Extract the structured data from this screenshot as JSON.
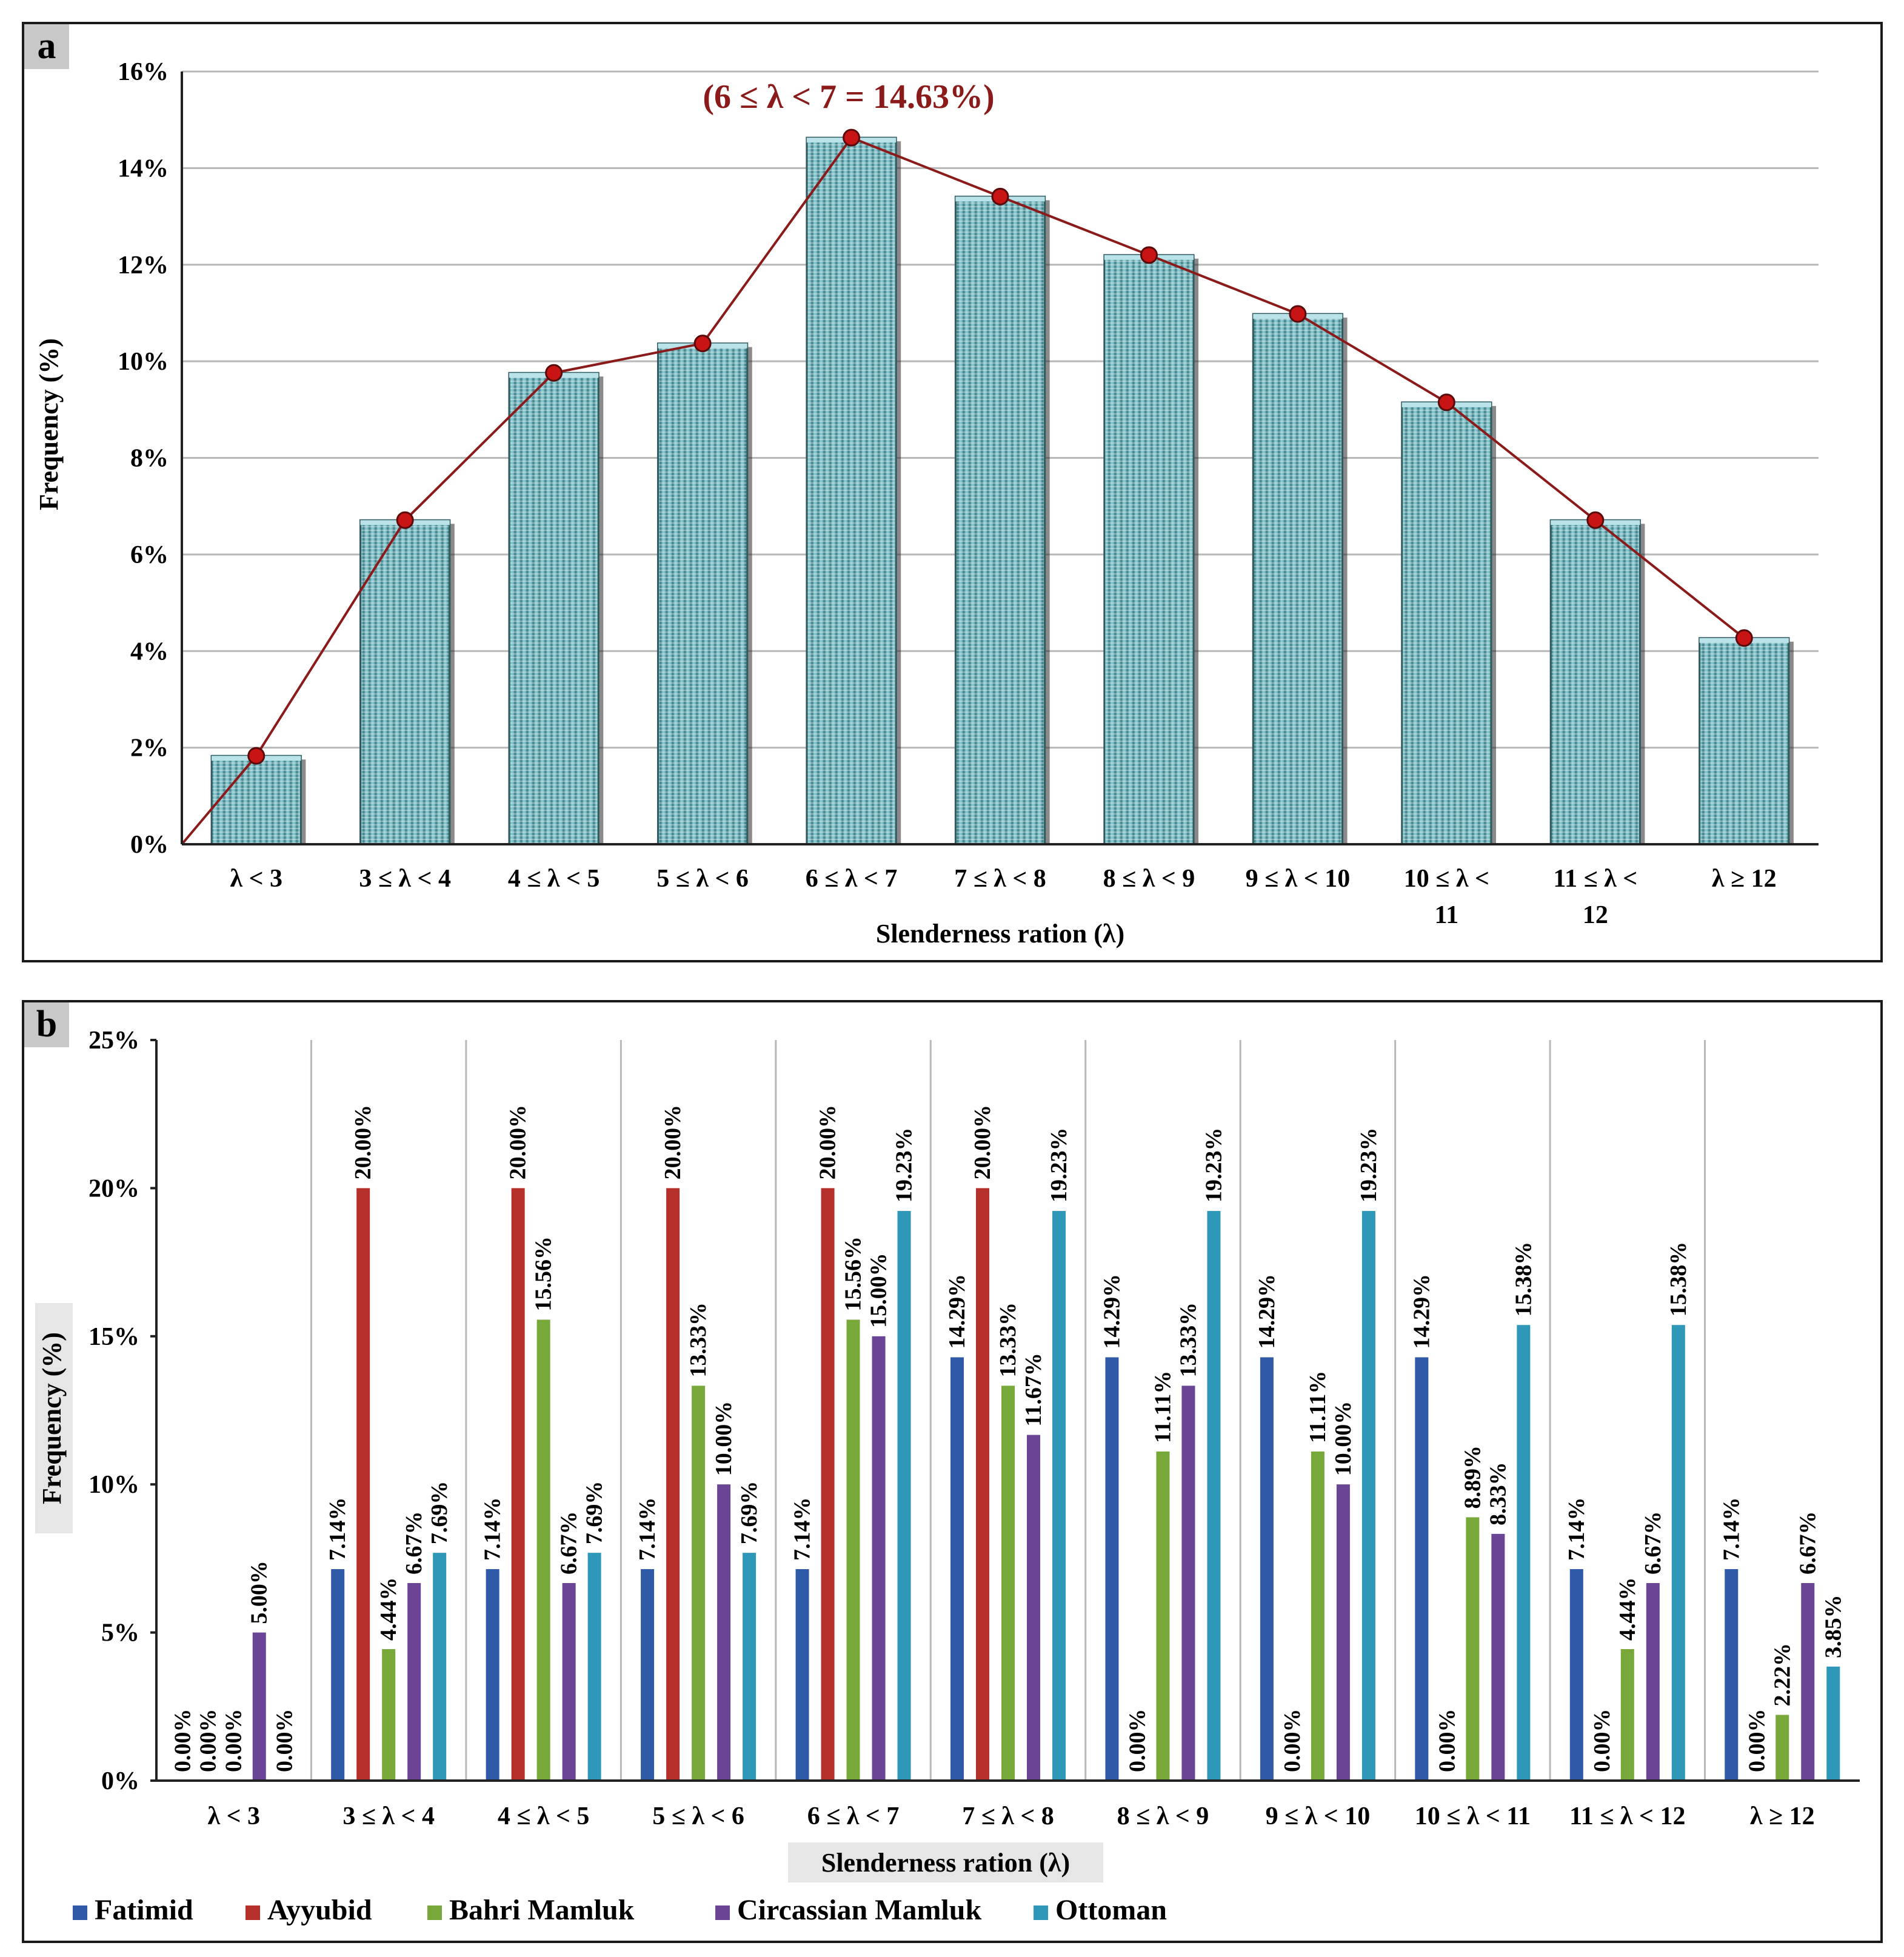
{
  "chart_data": [
    {
      "panel_label": "a",
      "type": "bar",
      "categories": [
        "λ < 3",
        "3 ≤ λ < 4",
        "4 ≤ λ < 5",
        "5 ≤ λ < 6",
        "6 ≤ λ < 7",
        "7 ≤ λ < 8",
        "8 ≤ λ < 9",
        "9 ≤ λ < 10",
        "10 ≤ λ < 11",
        "11 ≤ λ < 12",
        "λ ≥ 12"
      ],
      "values": [
        1.83,
        6.71,
        9.76,
        10.37,
        14.63,
        13.41,
        12.2,
        10.98,
        9.15,
        6.71,
        4.27
      ],
      "overlay_line": {
        "type": "line",
        "values": [
          1.83,
          6.71,
          9.76,
          10.37,
          14.63,
          13.41,
          12.2,
          10.98,
          9.15,
          6.71,
          4.27
        ],
        "color": "#8b1a1a"
      },
      "annotation": "(6 ≤ λ < 7 = 14.63%)",
      "xlabel": "Slenderness ration (λ)",
      "ylabel": "Frequency (%)",
      "ylim": [
        0,
        16
      ],
      "yticks": [
        "0%",
        "2%",
        "4%",
        "6%",
        "8%",
        "10%",
        "12%",
        "14%",
        "16%"
      ],
      "grid": true,
      "bar_color": "#6fb3bd",
      "annotation_color": "#8b1a1a"
    },
    {
      "panel_label": "b",
      "type": "bar",
      "categories": [
        "λ < 3",
        "3 ≤ λ < 4",
        "4 ≤ λ < 5",
        "5 ≤ λ < 6",
        "6 ≤ λ < 7",
        "7 ≤ λ < 8",
        "8 ≤ λ < 9",
        "9 ≤ λ < 10",
        "10 ≤ λ < 11",
        "11 ≤ λ < 12",
        "λ ≥ 12"
      ],
      "series": [
        {
          "name": "Fatimid",
          "color": "#2e5aa8",
          "values": [
            0,
            7.14,
            7.14,
            7.14,
            7.14,
            14.29,
            14.29,
            14.29,
            14.29,
            7.14,
            7.14
          ]
        },
        {
          "name": "Ayyubid",
          "color": "#b5302a",
          "values": [
            null,
            20.0,
            20.0,
            20.0,
            20.0,
            20.0,
            null,
            null,
            null,
            null,
            null
          ]
        },
        {
          "name": "Bahri Mamluk",
          "color": "#79a83a",
          "values": [
            0,
            4.44,
            15.56,
            13.33,
            15.56,
            13.33,
            11.11,
            11.11,
            8.89,
            4.44,
            2.22
          ]
        },
        {
          "name": "Circassian Mamluk",
          "color": "#6a4495",
          "values": [
            5.0,
            6.67,
            6.67,
            10.0,
            15.0,
            11.67,
            13.33,
            10.0,
            8.33,
            6.67,
            6.67
          ]
        },
        {
          "name": "Ottoman",
          "color": "#2f97b8",
          "values": [
            0,
            7.69,
            7.69,
            7.69,
            19.23,
            19.23,
            19.23,
            19.23,
            15.38,
            15.38,
            3.85
          ]
        }
      ],
      "data_labels": [
        [
          "0.00%",
          "0.00%",
          "0.00%",
          "5.00%",
          "0.00%"
        ],
        [
          "7.14%",
          "20.00%",
          "4.44%",
          "6.67%",
          "7.69%"
        ],
        [
          "7.14%",
          "20.00%",
          "15.56%",
          "6.67%",
          "7.69%"
        ],
        [
          "7.14%",
          "20.00%",
          "13.33%",
          "10.00%",
          "7.69%"
        ],
        [
          "7.14%",
          "20.00%",
          "15.56%",
          "15.00%",
          "19.23%"
        ],
        [
          "14.29%",
          "20.00%",
          "13.33%",
          "11.67%",
          "19.23%"
        ],
        [
          "14.29%",
          "0.00%",
          "11.11%",
          "13.33%",
          "19.23%"
        ],
        [
          "14.29%",
          "0.00%",
          "11.11%",
          "10.00%",
          "19.23%"
        ],
        [
          "14.29%",
          "0.00%",
          "8.89%",
          "8.33%",
          "15.38%"
        ],
        [
          "7.14%",
          "0.00%",
          "4.44%",
          "6.67%",
          "15.38%"
        ],
        [
          "7.14%",
          "0.00%",
          "2.22%",
          "6.67%",
          "3.85%"
        ]
      ],
      "xlabel": "Slenderness ration (λ)",
      "ylabel": "Frequency (%)",
      "ylim": [
        0,
        25
      ],
      "yticks": [
        "0%",
        "5%",
        "10%",
        "15%",
        "20%",
        "25%"
      ],
      "grid": "vertical separators",
      "legend_position": "bottom"
    }
  ]
}
